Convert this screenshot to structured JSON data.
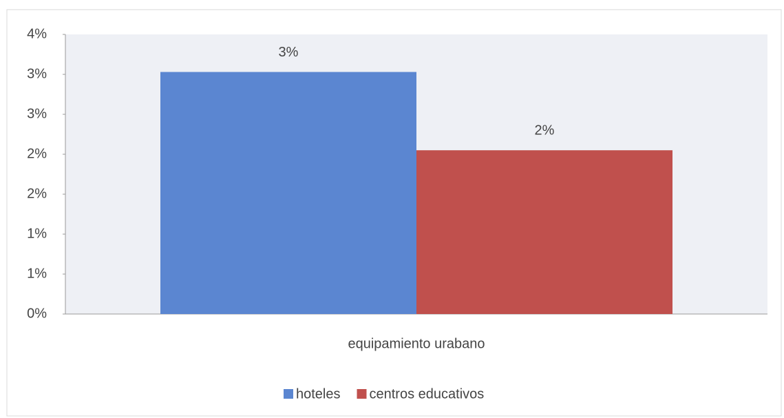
{
  "chart_data": {
    "type": "bar",
    "categories": [
      "equipamiento urabano"
    ],
    "series": [
      {
        "name": "hoteles",
        "color": "#5b86d1",
        "values": [
          3.03
        ],
        "value_labels": [
          "3%"
        ]
      },
      {
        "name": "centros educativos",
        "color": "#c0504d",
        "values": [
          2.05
        ],
        "value_labels": [
          "2%"
        ]
      }
    ],
    "ylim": [
      0,
      3.5
    ],
    "yticks": [
      {
        "value": 0,
        "label": "0%"
      },
      {
        "value": 0.5,
        "label": "1%"
      },
      {
        "value": 1,
        "label": "1%"
      },
      {
        "value": 1.5,
        "label": "2%"
      },
      {
        "value": 2,
        "label": "2%"
      },
      {
        "value": 2.5,
        "label": "3%"
      },
      {
        "value": 3,
        "label": "3%"
      },
      {
        "value": 3.5,
        "label": "4%"
      }
    ],
    "legend": "bottom"
  }
}
